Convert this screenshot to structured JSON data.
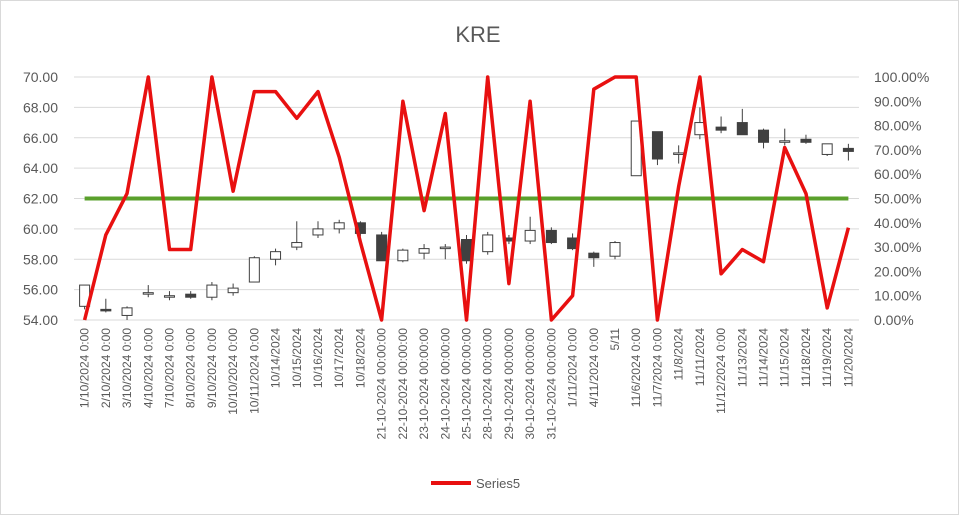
{
  "chart_data": {
    "type": "candlestick+line",
    "title": "KRE",
    "categories": [
      "1/10/2024 0:00",
      "2/10/2024 0:00",
      "3/10/2024 0:00",
      "4/10/2024 0:00",
      "7/10/2024 0:00",
      "8/10/2024 0:00",
      "9/10/2024 0:00",
      "10/10/2024 0:00",
      "10/11/2024 0:00",
      "10/14/2024",
      "10/15/2024",
      "10/16/2024",
      "10/17/2024",
      "10/18/2024",
      "21-10-2024 00:00:00",
      "22-10-2024 00:00:00",
      "23-10-2024 00:00:00",
      "24-10-2024 00:00:00",
      "25-10-2024 00:00:00",
      "28-10-2024 00:00:00",
      "29-10-2024 00:00:00",
      "30-10-2024 00:00:00",
      "31-10-2024 00:00:00",
      "1/11/2024 0:00",
      "4/11/2024 0:00",
      "5/11",
      "11/6/2024 0:00",
      "11/7/2024 0:00",
      "11/8/2024",
      "11/11/2024",
      "11/12/2024 0:00",
      "11/13/2024",
      "11/14/2024",
      "11/15/2024",
      "11/18/2024",
      "11/19/2024",
      "11/20/2024"
    ],
    "left_axis": {
      "min": 54,
      "max": 70,
      "step": 2,
      "ticks": [
        "70.00",
        "68.00",
        "66.00",
        "64.00",
        "62.00",
        "60.00",
        "58.00",
        "56.00",
        "54.00"
      ]
    },
    "right_axis": {
      "min": 0,
      "max": 1,
      "step": 0.1,
      "ticks": [
        "100.00%",
        "90.00%",
        "80.00%",
        "70.00%",
        "60.00%",
        "50.00%",
        "40.00%",
        "30.00%",
        "20.00%",
        "10.00%",
        "0.00%"
      ]
    },
    "candles": [
      {
        "o": 54.9,
        "h": 56.3,
        "l": 54.7,
        "c": 56.3
      },
      {
        "o": 54.7,
        "h": 55.4,
        "l": 54.5,
        "c": 54.6
      },
      {
        "o": 54.3,
        "h": 54.9,
        "l": 54.0,
        "c": 54.8
      },
      {
        "o": 55.8,
        "h": 56.3,
        "l": 55.5,
        "c": 55.8
      },
      {
        "o": 55.6,
        "h": 55.9,
        "l": 55.3,
        "c": 55.6
      },
      {
        "o": 55.7,
        "h": 55.9,
        "l": 55.4,
        "c": 55.5
      },
      {
        "o": 55.5,
        "h": 56.5,
        "l": 55.3,
        "c": 56.3
      },
      {
        "o": 55.8,
        "h": 56.4,
        "l": 55.6,
        "c": 56.1
      },
      {
        "o": 56.5,
        "h": 58.2,
        "l": 56.5,
        "c": 58.1
      },
      {
        "o": 58.0,
        "h": 58.7,
        "l": 57.6,
        "c": 58.5
      },
      {
        "o": 58.8,
        "h": 60.5,
        "l": 58.6,
        "c": 59.1
      },
      {
        "o": 59.6,
        "h": 60.5,
        "l": 59.4,
        "c": 60.0
      },
      {
        "o": 60.0,
        "h": 60.6,
        "l": 59.7,
        "c": 60.4
      },
      {
        "o": 60.4,
        "h": 60.5,
        "l": 59.5,
        "c": 59.7
      },
      {
        "o": 59.6,
        "h": 59.8,
        "l": 57.9,
        "c": 57.9
      },
      {
        "o": 57.9,
        "h": 58.7,
        "l": 57.8,
        "c": 58.6
      },
      {
        "o": 58.4,
        "h": 59.0,
        "l": 58.0,
        "c": 58.7
      },
      {
        "o": 58.7,
        "h": 59.0,
        "l": 58.0,
        "c": 58.8
      },
      {
        "o": 59.3,
        "h": 59.6,
        "l": 57.7,
        "c": 57.9
      },
      {
        "o": 58.5,
        "h": 59.8,
        "l": 58.3,
        "c": 59.6
      },
      {
        "o": 59.4,
        "h": 59.6,
        "l": 59.0,
        "c": 59.2
      },
      {
        "o": 59.2,
        "h": 60.8,
        "l": 59.0,
        "c": 59.9
      },
      {
        "o": 59.9,
        "h": 60.1,
        "l": 59.0,
        "c": 59.1
      },
      {
        "o": 59.4,
        "h": 59.7,
        "l": 58.6,
        "c": 58.7
      },
      {
        "o": 58.4,
        "h": 58.5,
        "l": 57.5,
        "c": 58.1
      },
      {
        "o": 58.2,
        "h": 59.2,
        "l": 58.0,
        "c": 59.1
      },
      {
        "o": 63.5,
        "h": 67.1,
        "l": 63.5,
        "c": 67.1
      },
      {
        "o": 66.4,
        "h": 66.4,
        "l": 64.2,
        "c": 64.6
      },
      {
        "o": 65.0,
        "h": 65.5,
        "l": 64.3,
        "c": 65.0
      },
      {
        "o": 66.2,
        "h": 68.0,
        "l": 65.9,
        "c": 67.0
      },
      {
        "o": 66.7,
        "h": 67.4,
        "l": 66.3,
        "c": 66.5
      },
      {
        "o": 67.0,
        "h": 67.9,
        "l": 66.2,
        "c": 66.2
      },
      {
        "o": 66.5,
        "h": 66.6,
        "l": 65.3,
        "c": 65.7
      },
      {
        "o": 65.8,
        "h": 66.6,
        "l": 65.5,
        "c": 65.8
      },
      {
        "o": 65.9,
        "h": 66.2,
        "l": 65.6,
        "c": 65.7
      },
      {
        "o": 64.9,
        "h": 65.6,
        "l": 64.8,
        "c": 65.6
      },
      {
        "o": 65.3,
        "h": 65.6,
        "l": 64.5,
        "c": 65.1
      }
    ],
    "series": [
      {
        "name": "Series5",
        "color": "#e81010",
        "axis": "right",
        "values": [
          0.0,
          0.35,
          0.52,
          1.0,
          0.29,
          0.29,
          1.0,
          0.53,
          0.94,
          0.94,
          0.83,
          0.94,
          0.67,
          0.32,
          0.0,
          0.9,
          0.45,
          0.85,
          0.0,
          1.0,
          0.15,
          0.9,
          0.0,
          0.1,
          0.95,
          1.0,
          1.0,
          0.0,
          0.55,
          1.0,
          0.19,
          0.29,
          0.24,
          0.71,
          0.52,
          0.05,
          0.38
        ]
      }
    ],
    "reference_line": {
      "value": 62,
      "axis": "left",
      "color": "#5aa02c"
    },
    "colors": {
      "bullish": "#ffffff",
      "bearish": "#404040",
      "candle_stroke": "#404040",
      "gridline": "#d9d9d9"
    },
    "legend": {
      "position": "bottom",
      "label": "Series5"
    },
    "grid": true
  }
}
